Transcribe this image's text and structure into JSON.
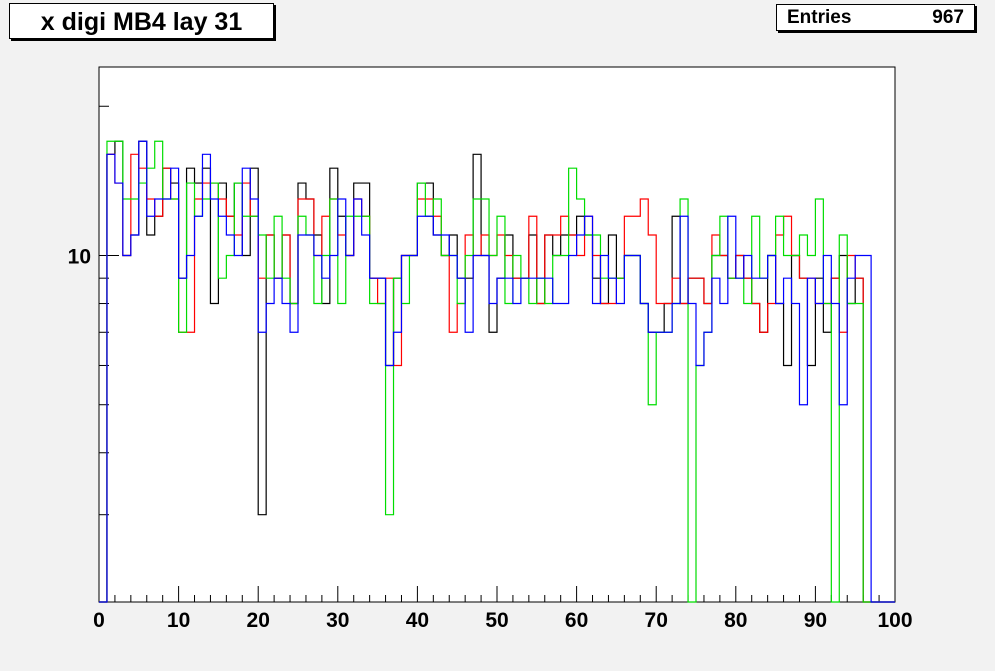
{
  "title": "x digi MB4 lay 31",
  "stats": {
    "entries_label": "Entries",
    "entries_value": "967"
  },
  "chart_data": {
    "type": "histogram-step",
    "title": "x digi MB4 lay 31",
    "xlabel": "",
    "ylabel": "",
    "xlim": [
      0,
      100
    ],
    "ylim": [
      2,
      24
    ],
    "y_scale": "log",
    "x_ticks": [
      0,
      10,
      20,
      30,
      40,
      50,
      60,
      70,
      80,
      90,
      100
    ],
    "y_tick_labels": [
      10
    ],
    "grid": false,
    "bin_width": 1,
    "series": [
      {
        "color": "#000000",
        "values": [
          0,
          16,
          17,
          10,
          11,
          17,
          11,
          12,
          15,
          14,
          9,
          15,
          14,
          15,
          8,
          14,
          12,
          14,
          10,
          15,
          3,
          11,
          9,
          11,
          8,
          14,
          13,
          11,
          8,
          15,
          12,
          10,
          14,
          14,
          9,
          9,
          6,
          9,
          10,
          10,
          14,
          14,
          11,
          10,
          11,
          9,
          9,
          16,
          10,
          7,
          9,
          11,
          9,
          9,
          11,
          8,
          11,
          10,
          11,
          11,
          12,
          11,
          9,
          8,
          11,
          9,
          10,
          10,
          8,
          7,
          7,
          8,
          12,
          8,
          9,
          9,
          8,
          10,
          10,
          9,
          10,
          9,
          8,
          7,
          10,
          8,
          6,
          10,
          9,
          6,
          9,
          7,
          9,
          10,
          8,
          9,
          0,
          0,
          0,
          0
        ]
      },
      {
        "color": "#ff0000",
        "values": [
          0,
          16,
          14,
          10,
          16,
          15,
          13,
          12,
          15,
          13,
          7,
          7,
          13,
          14,
          14,
          13,
          12,
          11,
          14,
          12,
          9,
          11,
          9,
          11,
          8,
          13,
          13,
          10,
          12,
          13,
          11,
          10,
          13,
          12,
          9,
          8,
          9,
          6,
          10,
          10,
          13,
          13,
          12,
          10,
          7,
          8,
          11,
          10,
          11,
          10,
          11,
          10,
          9,
          9,
          12,
          8,
          11,
          11,
          12,
          11,
          10,
          12,
          10,
          8,
          8,
          9,
          12,
          12,
          13,
          11,
          8,
          8,
          9,
          8,
          9,
          9,
          8,
          11,
          10,
          9,
          10,
          9,
          8,
          7,
          8,
          11,
          12,
          10,
          9,
          9,
          8,
          8,
          9,
          7,
          10,
          9,
          0,
          0,
          0,
          0
        ]
      },
      {
        "color": "#00dd00",
        "values": [
          0,
          17,
          17,
          13,
          13,
          14,
          15,
          17,
          13,
          13,
          7,
          14,
          12,
          13,
          14,
          9,
          10,
          14,
          12,
          12,
          11,
          9,
          12,
          9,
          8,
          12,
          11,
          8,
          10,
          13,
          8,
          12,
          12,
          12,
          8,
          8,
          3,
          9,
          8,
          10,
          14,
          12,
          13,
          10,
          10,
          8,
          10,
          13,
          13,
          10,
          12,
          8,
          10,
          9,
          8,
          9,
          8,
          10,
          10,
          15,
          13,
          11,
          11,
          9,
          9,
          9,
          10,
          10,
          8,
          5,
          7,
          7,
          8,
          13,
          0,
          6,
          7,
          10,
          12,
          9,
          9,
          8,
          12,
          9,
          10,
          12,
          10,
          10,
          11,
          10,
          13,
          8,
          0,
          11,
          8,
          8,
          0,
          0,
          0,
          0
        ]
      },
      {
        "color": "#0000ff",
        "values": [
          0,
          16,
          14,
          10,
          11,
          17,
          12,
          13,
          13,
          15,
          9,
          10,
          12,
          16,
          13,
          12,
          11,
          10,
          15,
          13,
          7,
          8,
          9,
          8,
          7,
          11,
          11,
          10,
          9,
          10,
          13,
          10,
          13,
          11,
          9,
          9,
          6,
          7,
          10,
          10,
          12,
          12,
          11,
          11,
          10,
          9,
          7,
          10,
          10,
          8,
          9,
          9,
          8,
          9,
          9,
          9,
          9,
          8,
          8,
          10,
          11,
          12,
          8,
          10,
          9,
          8,
          10,
          10,
          8,
          7,
          7,
          7,
          8,
          12,
          8,
          6,
          7,
          9,
          8,
          12,
          9,
          10,
          9,
          9,
          10,
          8,
          9,
          8,
          5,
          9,
          8,
          10,
          8,
          5,
          9,
          10,
          10,
          0,
          0,
          0
        ]
      }
    ]
  }
}
